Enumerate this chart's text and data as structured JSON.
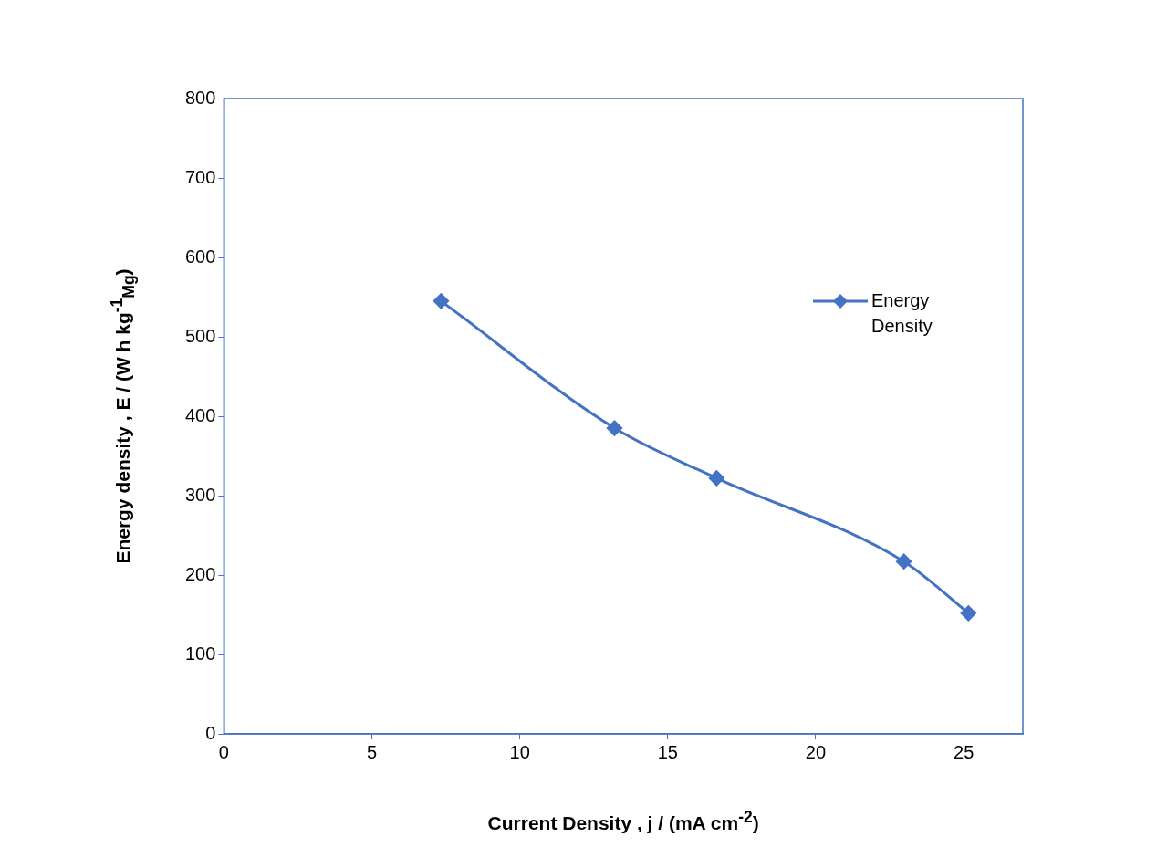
{
  "chart_data": {
    "type": "line",
    "xlabel": "Current Density , j / (mA cm$^{-2}$)",
    "ylabel": "Energy density , E  / (W h kg$^{-1}$$_{Mg}$)",
    "xlim": [
      0,
      27
    ],
    "xticks": [
      0,
      5,
      10,
      15,
      20,
      25
    ],
    "ylim": [
      0,
      800
    ],
    "yticks": [
      0,
      100,
      200,
      300,
      400,
      500,
      600,
      700,
      800
    ],
    "grid": false,
    "legend": "right",
    "marker": "diamond",
    "line_style": "solid",
    "series": [
      {
        "name": "Energy Density",
        "color": "#4472c4",
        "x": [
          7.34,
          13.2,
          16.65,
          22.98,
          25.16
        ],
        "values": [
          545,
          385,
          322,
          217,
          152
        ]
      }
    ]
  }
}
